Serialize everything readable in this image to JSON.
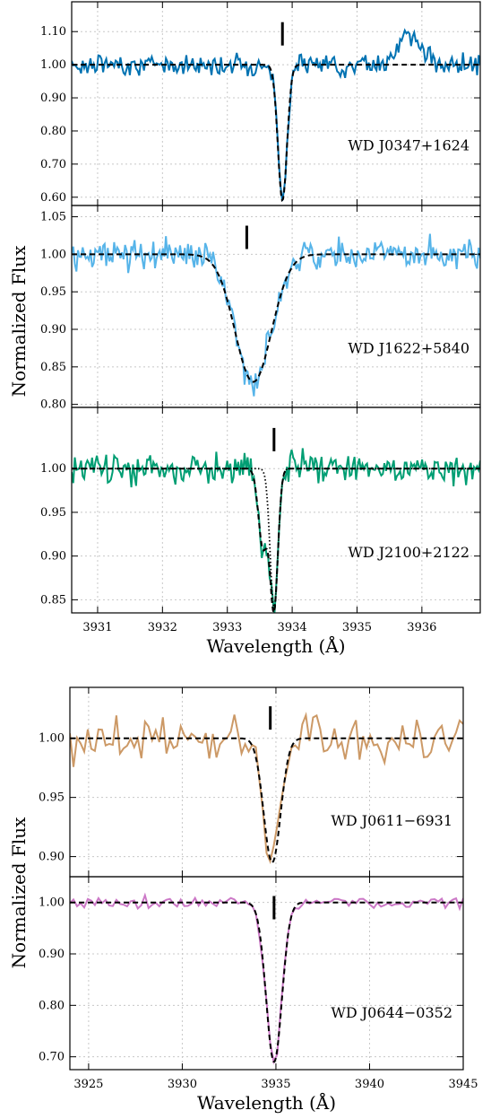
{
  "chart_data": [
    {
      "type": "line",
      "shared_xlabel": "Wavelength (Å)",
      "shared_ylabel": "Normalized Flux",
      "xlim": [
        3930.6,
        3936.9
      ],
      "xticks": [
        "3931",
        "3932",
        "3933",
        "3934",
        "3935",
        "3936"
      ],
      "grid": true,
      "panels": [
        {
          "label": "WD J0347+1624",
          "ylim": [
            0.575,
            1.19
          ],
          "yticks": [
            "0.60",
            "0.70",
            "0.80",
            "0.90",
            "1.00",
            "1.10"
          ],
          "color": "#0072b2",
          "line_marker_x": 3933.85,
          "model": {
            "center": 3933.85,
            "depth": 0.41,
            "sigma": 0.07
          },
          "noise": 0.03,
          "bumps": [
            {
              "x": 3935.8,
              "amp": 0.09,
              "w": 0.18
            }
          ]
        },
        {
          "label": "WD J1622+5840",
          "ylim": [
            0.796,
            1.065
          ],
          "yticks": [
            "0.80",
            "0.85",
            "0.90",
            "0.95",
            "1.00",
            "1.05"
          ],
          "color": "#56b4e9",
          "line_marker_x": 3933.3,
          "model": {
            "center": 3933.4,
            "depth": 0.17,
            "sigma": 0.28
          },
          "noise": 0.02,
          "bumps": []
        },
        {
          "label": "WD J2100+2122",
          "ylim": [
            0.835,
            1.07
          ],
          "yticks": [
            "0.85",
            "0.90",
            "0.95",
            "1.00"
          ],
          "color": "#009e73",
          "line_marker_x": 3933.72,
          "model": {
            "center": 3933.72,
            "depth": 0.16,
            "sigma": 0.06
          },
          "model2": {
            "center": 3933.55,
            "depth": 0.09,
            "sigma": 0.07
          },
          "noise": 0.018,
          "bumps": []
        }
      ]
    },
    {
      "type": "line",
      "shared_xlabel": "Wavelength (Å)",
      "shared_ylabel": "Normalized Flux",
      "xlim": [
        3924,
        3945
      ],
      "xticks": [
        "3925",
        "3930",
        "3935",
        "3940",
        "3945"
      ],
      "grid": true,
      "panels": [
        {
          "label": "WD J0611−6931",
          "ylim": [
            0.883,
            1.043
          ],
          "yticks": [
            "0.90",
            "0.95",
            "1.00"
          ],
          "color": "#cc9966",
          "line_marker_x": 3934.7,
          "model": {
            "center": 3934.8,
            "depth": 0.105,
            "sigma": 0.45
          },
          "noise": 0.022,
          "bumps": []
        },
        {
          "label": "WD J0644−0352",
          "ylim": [
            0.675,
            1.05
          ],
          "yticks": [
            "0.70",
            "0.80",
            "0.90",
            "1.00"
          ],
          "color": "#cc79c7",
          "line_marker_x": 3934.9,
          "model": {
            "center": 3934.9,
            "depth": 0.31,
            "sigma": 0.42
          },
          "noise": 0.012,
          "bumps": []
        }
      ]
    }
  ]
}
